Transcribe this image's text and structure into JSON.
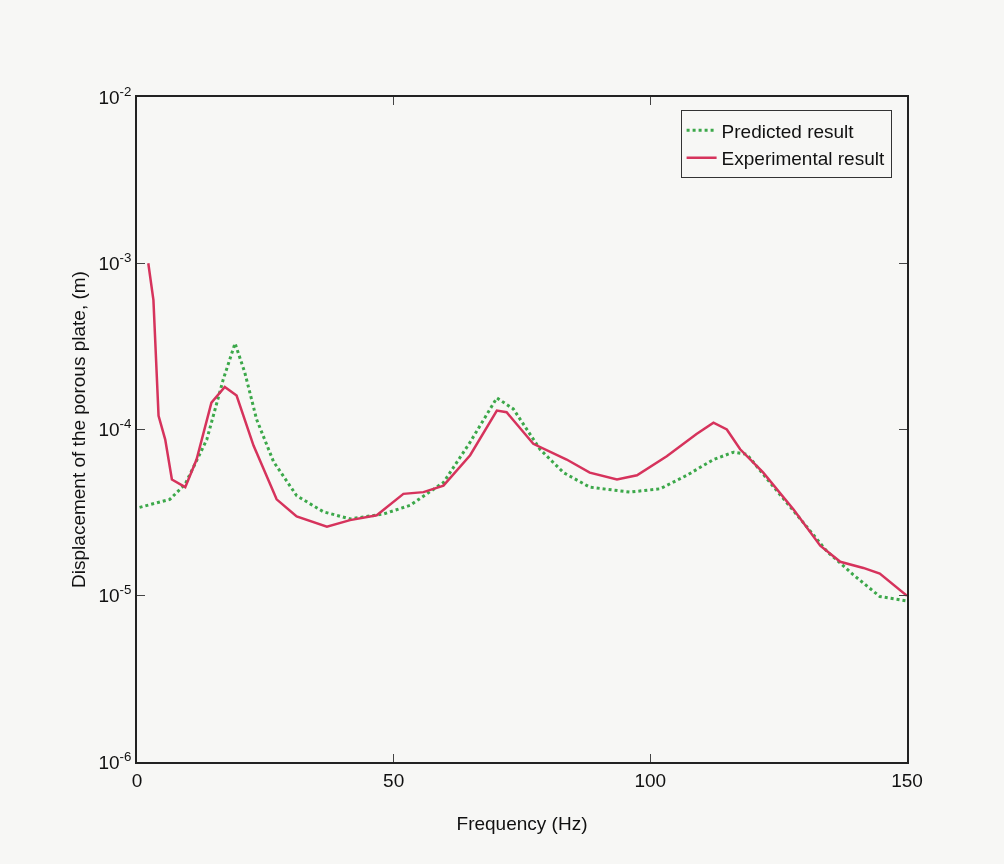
{
  "chart_data": {
    "type": "line",
    "xlabel": "Frequency (Hz)",
    "ylabel": "Displacement of the porous plate, (m)",
    "log": "y",
    "grid": false,
    "legend": "top right",
    "xlim": [
      0,
      150
    ],
    "xticks": [
      0,
      50,
      100,
      150
    ],
    "ylim": [
      1e-06,
      0.01
    ],
    "yticks": [
      {
        "value": 0.01,
        "label": "10$^{-2}$"
      },
      {
        "value": 0.001,
        "label": "10$^{-3}$"
      },
      {
        "value": 0.0001,
        "label": "10$^{-4}$"
      },
      {
        "value": 1e-05,
        "label": "10$^{-5}$"
      },
      {
        "value": 1e-06,
        "label": "10$^{-6}$"
      }
    ],
    "series": [
      {
        "name": "Predicted result",
        "color": "#3ca84a",
        "line_style": "dotted",
        "x": [
          0.5,
          6.4,
          9.4,
          13.6,
          16.8,
          19.1,
          21.0,
          23.3,
          26.6,
          31.1,
          36.3,
          41.5,
          48.0,
          53.2,
          59.7,
          64.9,
          70.1,
          73.3,
          78.5,
          83.1,
          88.2,
          96.0,
          101.9,
          107.1,
          112.3,
          116.2,
          118.8,
          123.3,
          129.2,
          134.4,
          139.5,
          144.7,
          150
        ],
        "values": [
          3.4e-05,
          3.8e-05,
          4.7e-05,
          8.7e-05,
          0.0002,
          0.00033,
          0.00022,
          0.000115,
          6.4e-05,
          4e-05,
          3.2e-05,
          2.9e-05,
          3.1e-05,
          3.5e-05,
          4.8e-05,
          8.4e-05,
          0.000155,
          0.000133,
          7.6e-05,
          5.5e-05,
          4.5e-05,
          4.2e-05,
          4.4e-05,
          5.3e-05,
          6.6e-05,
          7.3e-05,
          7.1e-05,
          4.8e-05,
          2.9e-05,
          1.85e-05,
          1.34e-05,
          9.9e-06,
          9.3e-06
        ]
      },
      {
        "name": "Experimental result",
        "color": "#d6335c",
        "line_style": "solid",
        "x": [
          2.2,
          3.2,
          4.2,
          5.5,
          6.8,
          9.4,
          11.6,
          14.5,
          17.1,
          19.4,
          22.7,
          27.2,
          31.1,
          37.0,
          41.5,
          46.7,
          51.9,
          55.8,
          59.7,
          64.9,
          70.1,
          72.0,
          77.2,
          83.7,
          88.2,
          93.5,
          97.4,
          103.2,
          109.0,
          112.3,
          114.9,
          117.5,
          122.0,
          127.9,
          133.1,
          137.0,
          141.5,
          144.7,
          150
        ],
        "values": [
          0.001,
          0.0006,
          0.000121,
          8.7e-05,
          5e-05,
          4.5e-05,
          6.6e-05,
          0.000145,
          0.00018,
          0.00016,
          8e-05,
          3.8e-05,
          3e-05,
          2.6e-05,
          2.85e-05,
          3.05e-05,
          4.1e-05,
          4.2e-05,
          4.6e-05,
          7e-05,
          0.00013,
          0.000127,
          8.2e-05,
          6.6e-05,
          5.5e-05,
          5e-05,
          5.3e-05,
          6.9e-05,
          9.4e-05,
          0.00011,
          0.0001,
          7.6e-05,
          5.5e-05,
          3.3e-05,
          2e-05,
          1.6e-05,
          1.47e-05,
          1.36e-05,
          1e-05
        ]
      }
    ]
  }
}
